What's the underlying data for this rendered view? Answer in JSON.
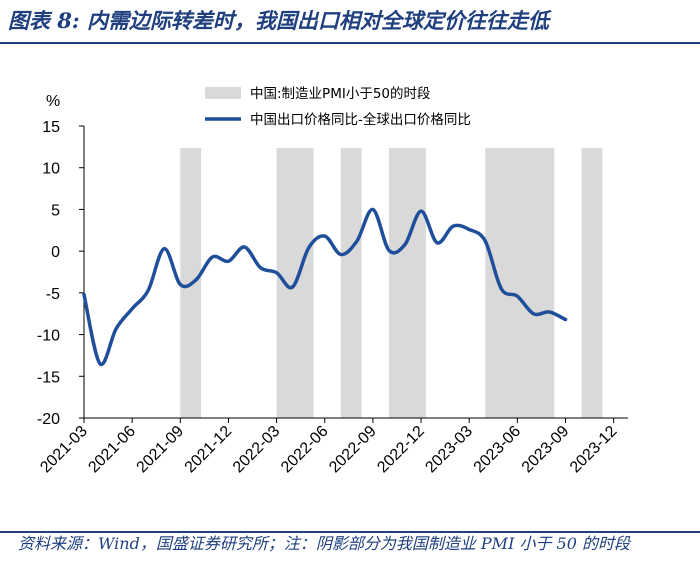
{
  "figure": {
    "title": "图表 8:  内需边际转差时，我国出口相对全球定价往往走低",
    "source": "资料来源：Wind，国盛证券研究所；注：阴影部分为我国制造业 PMI 小于 50 的时段"
  },
  "chart_data": {
    "type": "line",
    "ylabel": "%",
    "ylim": [
      -20,
      15
    ],
    "yticks": [
      15,
      10,
      5,
      0,
      -5,
      -10,
      -15,
      -20
    ],
    "xlabels": [
      "2021-03",
      "2021-06",
      "2021-09",
      "2021-12",
      "2022-03",
      "2022-06",
      "2022-09",
      "2022-12",
      "2023-03",
      "2023-06",
      "2023-09",
      "2023-12"
    ],
    "x": [
      "2021-03",
      "2021-04",
      "2021-05",
      "2021-06",
      "2021-07",
      "2021-08",
      "2021-09",
      "2021-10",
      "2021-11",
      "2021-12",
      "2022-01",
      "2022-02",
      "2022-03",
      "2022-04",
      "2022-05",
      "2022-06",
      "2022-07",
      "2022-08",
      "2022-09",
      "2022-10",
      "2022-11",
      "2022-12",
      "2023-01",
      "2023-02",
      "2023-03",
      "2023-04",
      "2023-05",
      "2023-06",
      "2023-07",
      "2023-08",
      "2023-09",
      "2023-10"
    ],
    "series": [
      {
        "name": "中国出口价格同比-全球出口价格同比",
        "color": "#1f4e9a",
        "values": [
          -5.2,
          -13.5,
          -9.3,
          -6.9,
          -4.7,
          0.3,
          -4.0,
          -3.4,
          -0.7,
          -1.2,
          0.5,
          -2.0,
          -2.6,
          -4.3,
          0.4,
          1.8,
          -0.4,
          1.2,
          5.0,
          0.1,
          0.8,
          4.8,
          1.0,
          3.0,
          2.6,
          1.2,
          -4.5,
          -5.4,
          -7.5,
          -7.3,
          -8.2,
          null
        ]
      }
    ],
    "shaded_periods": {
      "name": "中国:制造业PMI小于50的时段",
      "color": "#d9d9d9",
      "ranges": [
        [
          "2021-09",
          "2021-10"
        ],
        [
          "2022-03",
          "2022-05"
        ],
        [
          "2022-07",
          "2022-08"
        ],
        [
          "2022-10",
          "2022-12"
        ],
        [
          "2023-04",
          "2023-08"
        ],
        [
          "2023-10",
          "2023-11"
        ]
      ]
    },
    "legend": {
      "placement": "top-center",
      "entries": [
        "中国:制造业PMI小于50的时段",
        "中国出口价格同比-全球出口价格同比"
      ]
    }
  }
}
